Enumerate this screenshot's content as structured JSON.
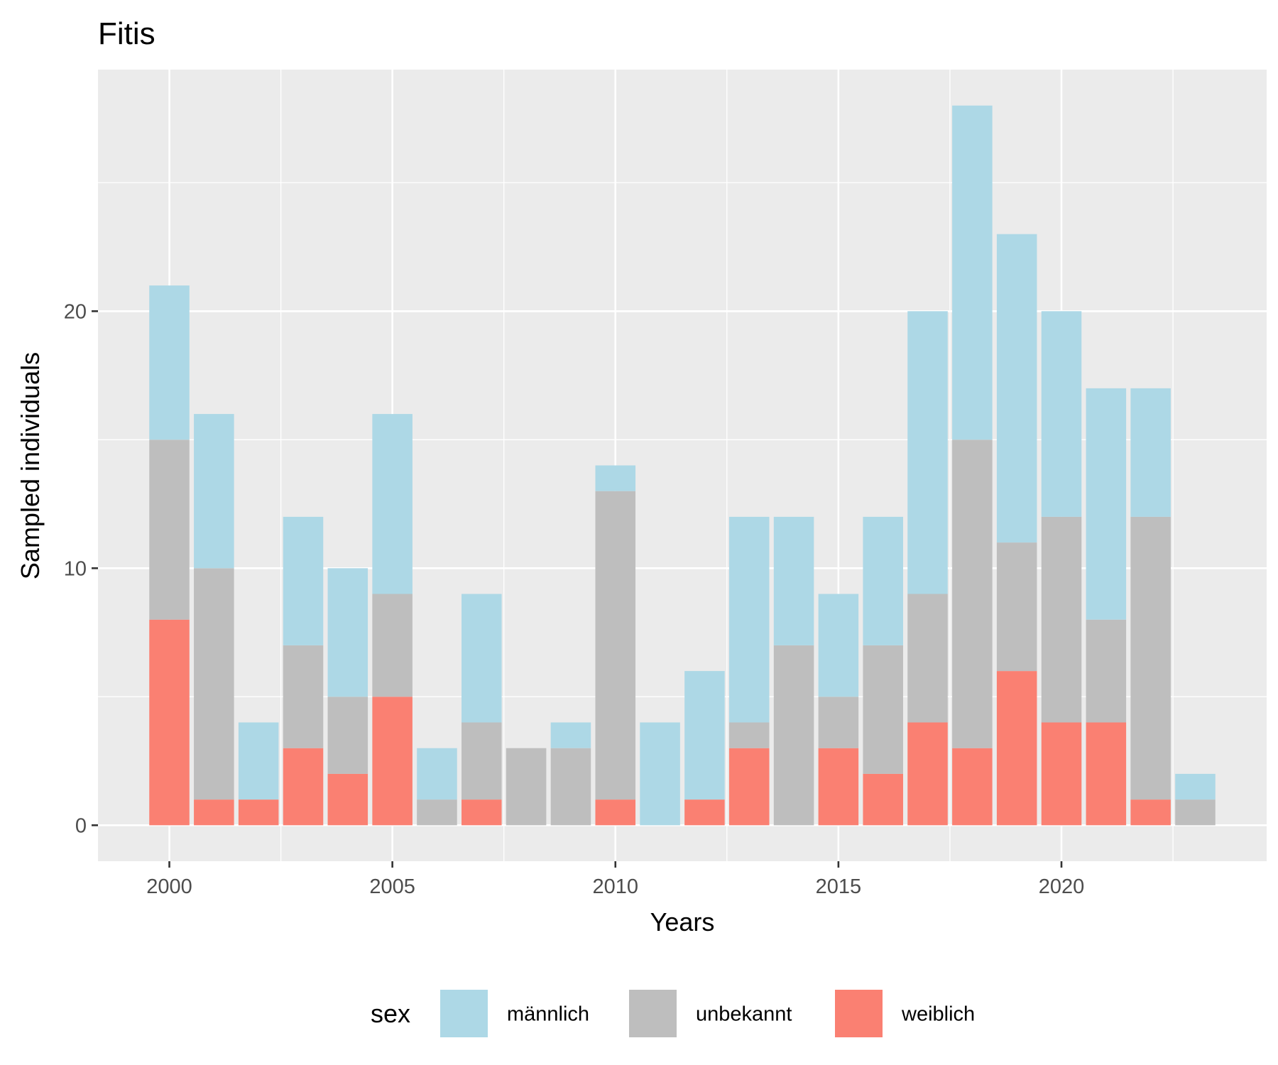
{
  "chart_data": {
    "type": "bar",
    "stacked": true,
    "title": "Fitis",
    "xlabel": "Years",
    "ylabel": "Sampled individuals",
    "x": [
      2000,
      2001,
      2002,
      2003,
      2004,
      2005,
      2006,
      2007,
      2008,
      2009,
      2010,
      2011,
      2012,
      2013,
      2014,
      2015,
      2016,
      2017,
      2018,
      2019,
      2020,
      2021,
      2022,
      2023
    ],
    "xticks": [
      2000,
      2005,
      2010,
      2015,
      2020
    ],
    "yticks": [
      0,
      10,
      20
    ],
    "xlim": [
      1998.4,
      2024.6
    ],
    "ylim": [
      -1.4,
      29.4
    ],
    "grid": true,
    "legend_title": "sex",
    "legend_position": "bottom",
    "series": [
      {
        "name": "weiblich",
        "color": "#FA8072",
        "values": [
          8,
          1,
          1,
          3,
          2,
          5,
          0,
          1,
          0,
          0,
          1,
          0,
          1,
          3,
          0,
          3,
          2,
          4,
          3,
          6,
          4,
          4,
          1,
          0
        ]
      },
      {
        "name": "unbekannt",
        "color": "#BEBEBE",
        "values": [
          7,
          9,
          0,
          4,
          3,
          4,
          1,
          3,
          3,
          3,
          12,
          0,
          0,
          1,
          7,
          2,
          5,
          5,
          12,
          5,
          8,
          4,
          11,
          1
        ]
      },
      {
        "name": "männlich",
        "color": "#ADD8E6",
        "values": [
          6,
          6,
          3,
          5,
          5,
          7,
          2,
          5,
          0,
          1,
          1,
          4,
          5,
          8,
          5,
          4,
          5,
          11,
          13,
          12,
          8,
          9,
          5,
          1
        ]
      }
    ],
    "legend_order": [
      "männlich",
      "unbekannt",
      "weiblich"
    ]
  }
}
